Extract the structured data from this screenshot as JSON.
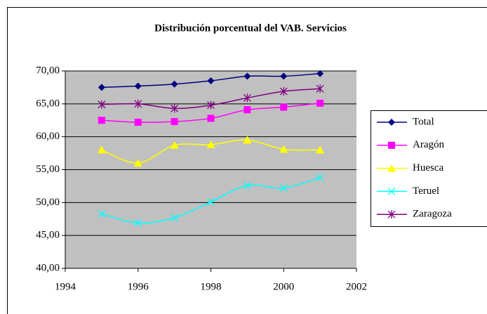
{
  "chart_data": {
    "type": "line",
    "title": "Distribución porcentual del VAB. Servicios",
    "x": [
      1995,
      1996,
      1997,
      1998,
      1999,
      2000,
      2001
    ],
    "series": [
      {
        "name": "Total",
        "color": "#000080",
        "marker": "diamond",
        "values": [
          67.5,
          67.7,
          68.0,
          68.5,
          69.2,
          69.2,
          69.6
        ]
      },
      {
        "name": "Aragón",
        "color": "#ff00ff",
        "marker": "square",
        "values": [
          62.5,
          62.2,
          62.3,
          62.8,
          64.1,
          64.5,
          65.1
        ]
      },
      {
        "name": "Huesca",
        "color": "#ffff00",
        "marker": "triangle",
        "values": [
          58.0,
          56.0,
          58.7,
          58.8,
          59.5,
          58.1,
          58.0
        ]
      },
      {
        "name": "Teruel",
        "color": "#00ffff",
        "marker": "x",
        "values": [
          48.3,
          46.9,
          47.7,
          50.1,
          52.6,
          52.2,
          53.8
        ]
      },
      {
        "name": "Zaragoza",
        "color": "#800080",
        "marker": "star",
        "values": [
          64.9,
          65.0,
          64.3,
          64.8,
          65.9,
          66.9,
          67.3
        ]
      }
    ],
    "xlim": [
      1994,
      2002
    ],
    "xticks": [
      1994,
      1996,
      1998,
      2000,
      2002
    ],
    "ylim": [
      40,
      70
    ],
    "yticks": [
      {
        "value": 40,
        "label": "40,00"
      },
      {
        "value": 45,
        "label": "45,00"
      },
      {
        "value": 50,
        "label": "50,00"
      },
      {
        "value": 55,
        "label": "55,00"
      },
      {
        "value": 60,
        "label": "60,00"
      },
      {
        "value": 65,
        "label": "65,00"
      },
      {
        "value": 70,
        "label": "70,00"
      }
    ],
    "grid": true,
    "legend": "right",
    "plot_background": "#c0c0c0"
  }
}
